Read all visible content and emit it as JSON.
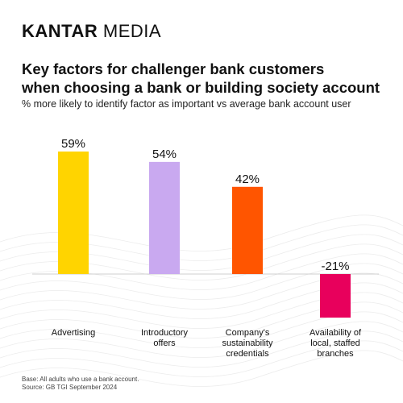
{
  "brand": {
    "name_bold": "KANTAR",
    "name_regular": "MEDIA"
  },
  "title_line1": "Key factors for challenger bank customers",
  "title_line2": "when choosing a bank or building society account",
  "subtitle": "% more likely to identify factor as important vs average bank account user",
  "footer": {
    "base": "Base: All adults who use a bank account.",
    "source": "Source: GB TGI September 2024"
  },
  "chart_data": {
    "type": "bar",
    "categories": [
      [
        "Advertising"
      ],
      [
        "Introductory",
        "offers"
      ],
      [
        "Company's",
        "sustainability",
        "credentials"
      ],
      [
        "Availability of",
        "local, staffed",
        "branches"
      ]
    ],
    "values": [
      59,
      54,
      42,
      -21
    ],
    "value_labels": [
      "59%",
      "54%",
      "42%",
      "-21%"
    ],
    "colors": [
      "#FFD400",
      "#C9A9F0",
      "#FF5500",
      "#E8005C"
    ],
    "ylim": [
      -21,
      59
    ],
    "grid": false,
    "legend": "none"
  }
}
